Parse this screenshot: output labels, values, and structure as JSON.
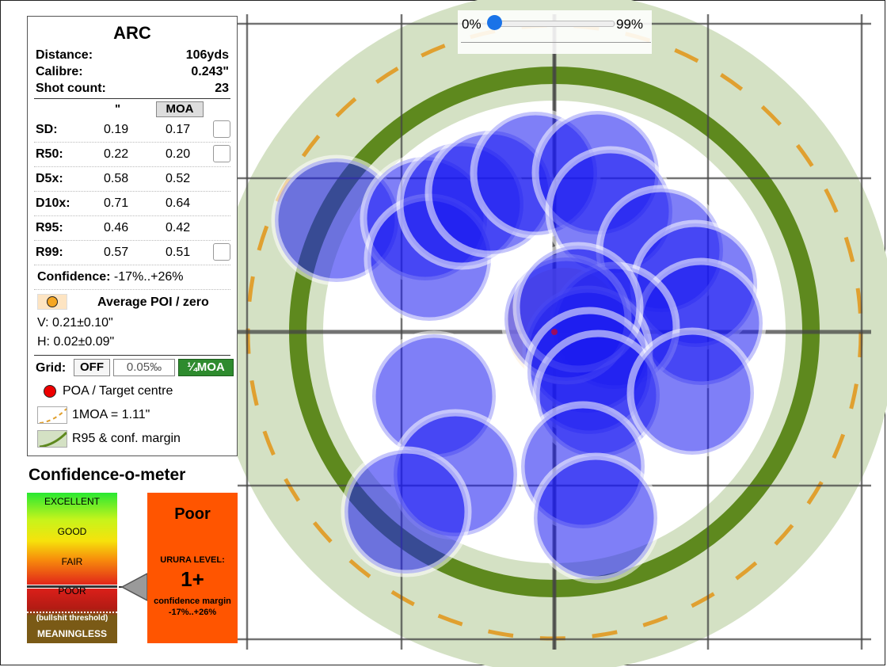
{
  "panel": {
    "title": "ARC",
    "distance_label": "Distance:",
    "distance_value": "106yds",
    "calibre_label": "Calibre:",
    "calibre_value": "0.243\"",
    "shots_label": "Shot count:",
    "shots_value": "23",
    "unit_inch": "\"",
    "unit_moa": "MOA",
    "stats": [
      {
        "label": "SD:",
        "inch": "0.19",
        "moa": "0.17",
        "checkbox": true
      },
      {
        "label": "R50:",
        "inch": "0.22",
        "moa": "0.20",
        "checkbox": true
      },
      {
        "label": "D5x:",
        "inch": "0.58",
        "moa": "0.52",
        "checkbox": false
      },
      {
        "label": "D10x:",
        "inch": "0.71",
        "moa": "0.64",
        "checkbox": false
      },
      {
        "label": "R95:",
        "inch": "0.46",
        "moa": "0.42",
        "checkbox": false
      },
      {
        "label": "R99:",
        "inch": "0.57",
        "moa": "0.51",
        "checkbox": true
      }
    ],
    "confidence_label": "Confidence:",
    "confidence_value": "-17%..+26%",
    "poi_label": "Average POI / zero",
    "poi_v": "V: 0.21±0.10\"",
    "poi_h": "H: 0.02±0.09\"",
    "grid_label": "Grid:",
    "grid_options": [
      "OFF",
      "0.05‰",
      "¼MOA"
    ],
    "grid_selected": "¼MOA",
    "legend_poa": "POA / Target centre",
    "legend_moa": "1MOA = 1.11\"",
    "legend_r95": "R95 & conf. margin"
  },
  "meter": {
    "title": "Confidence-o-meter",
    "levels": [
      "EXCELLENT",
      "GOOD",
      "FAIR",
      "POOR"
    ],
    "threshold": "(bullshit threshold)",
    "bottom": "MEANINGLESS",
    "verdict": "Poor",
    "urura_label": "URURA LEVEL:",
    "urura_value": "1+",
    "margin_label": "confidence margin",
    "margin_value": "-17%..+26%",
    "pointer_level": "POOR"
  },
  "slider": {
    "min_label": "0%",
    "max_label": "99%",
    "value_percent": 0
  },
  "colors": {
    "shot": "#1a1af0",
    "r95_ring": "#5e891e",
    "margin_band": "#d4e1c4",
    "moa_ring": "#e0a030",
    "verdict_bg": "#ff5500",
    "grid_selected_bg": "#2e8b2e"
  },
  "icons": {
    "poi": "orange-dot-icon",
    "poa": "red-dot-icon",
    "moa": "dashed-arc-icon",
    "r95": "curve-icon"
  },
  "target": {
    "grid_on": true,
    "shots_drawn": 23
  }
}
